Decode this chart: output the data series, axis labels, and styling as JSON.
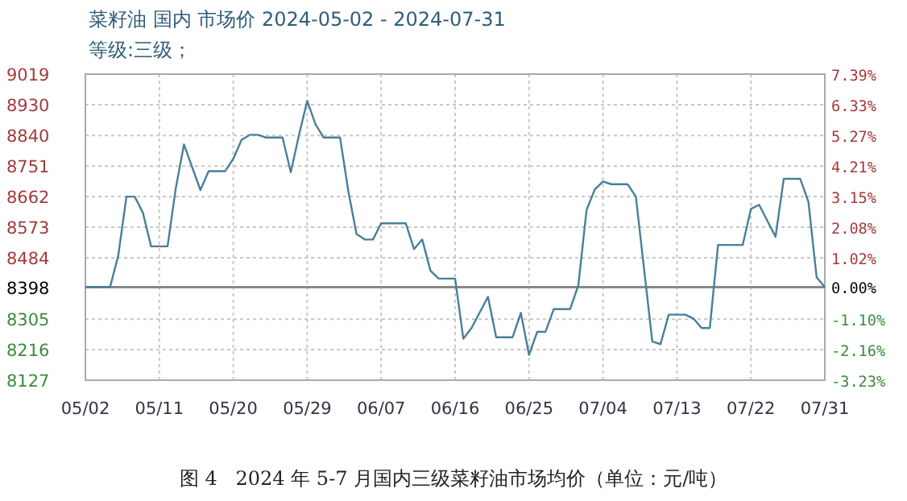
{
  "chart_data": {
    "type": "line",
    "title": "菜籽油 国内 市场价 2024-05-02 - 2024-07-31",
    "subtitle": "等级:三级；",
    "annotations": [
      "图 4   2024 年 5-7 月国内三级菜籽油市场均价（单位：元/吨）"
    ],
    "x": [
      "2024-05-02",
      "2024-05-05",
      "2024-05-06",
      "2024-05-07",
      "2024-05-08",
      "2024-05-09",
      "2024-05-10",
      "2024-05-12",
      "2024-05-13",
      "2024-05-14",
      "2024-05-16",
      "2024-05-17",
      "2024-05-19",
      "2024-05-20",
      "2024-05-21",
      "2024-05-22",
      "2024-05-23",
      "2024-05-24",
      "2024-05-26",
      "2024-05-27",
      "2024-05-28",
      "2024-05-29",
      "2024-05-30",
      "2024-05-31",
      "2024-06-02",
      "2024-06-03",
      "2024-06-04",
      "2024-06-05",
      "2024-06-06",
      "2024-06-07",
      "2024-06-10",
      "2024-06-11",
      "2024-06-12",
      "2024-06-13",
      "2024-06-14",
      "2024-06-16",
      "2024-06-17",
      "2024-06-18",
      "2024-06-20",
      "2024-06-21",
      "2024-06-23",
      "2024-06-24",
      "2024-06-25",
      "2024-06-26",
      "2024-06-27",
      "2024-06-28",
      "2024-06-30",
      "2024-07-01",
      "2024-07-02",
      "2024-07-03",
      "2024-07-04",
      "2024-07-05",
      "2024-07-07",
      "2024-07-08",
      "2024-07-10",
      "2024-07-11",
      "2024-07-12",
      "2024-07-14",
      "2024-07-15",
      "2024-07-16",
      "2024-07-17",
      "2024-07-18",
      "2024-07-21",
      "2024-07-22",
      "2024-07-23",
      "2024-07-25",
      "2024-07-26",
      "2024-07-28",
      "2024-07-29",
      "2024-07-30",
      "2024-07-31"
    ],
    "series": [
      {
        "color": "#4a7f9a",
        "values": [
          8398,
          8398,
          8490,
          8662,
          8662,
          8615,
          8517,
          8517,
          8686,
          8814,
          8681,
          8736,
          8736,
          8772,
          8827,
          8842,
          8842,
          8834,
          8834,
          8733,
          8842,
          8941,
          8873,
          8834,
          8834,
          8678,
          8553,
          8537,
          8537,
          8584,
          8584,
          8509,
          8537,
          8446,
          8423,
          8423,
          8248,
          8279,
          8370,
          8252,
          8252,
          8323,
          8201,
          8268,
          8268,
          8334,
          8334,
          8404,
          8623,
          8683,
          8706,
          8698,
          8698,
          8662,
          8240,
          8232,
          8318,
          8318,
          8307,
          8279,
          8279,
          8521,
          8521,
          8626,
          8638,
          8545,
          8714,
          8714,
          8647,
          8427,
          8398
        ]
      }
    ],
    "xlim": [
      "2024-05-02",
      "2024-07-31"
    ],
    "xticks": [
      {
        "value": "2024-05-02",
        "label": "05/02"
      },
      {
        "value": "2024-05-11",
        "label": "05/11"
      },
      {
        "value": "2024-05-20",
        "label": "05/20"
      },
      {
        "value": "2024-05-29",
        "label": "05/29"
      },
      {
        "value": "2024-06-07",
        "label": "06/07"
      },
      {
        "value": "2024-06-16",
        "label": "06/16"
      },
      {
        "value": "2024-06-25",
        "label": "06/25"
      },
      {
        "value": "2024-07-04",
        "label": "07/04"
      },
      {
        "value": "2024-07-13",
        "label": "07/13"
      },
      {
        "value": "2024-07-22",
        "label": "07/22"
      },
      {
        "value": "2024-07-31",
        "label": "07/31"
      }
    ],
    "ylim": [
      8127,
      9019
    ],
    "yticks": [
      8127,
      8216,
      8305,
      8398,
      8484,
      8573,
      8662,
      8751,
      8840,
      8930,
      9019
    ],
    "y2lim": [
      -3.23,
      7.39
    ],
    "y2ticks": [
      {
        "value": -3.23,
        "label": "-3.23%"
      },
      {
        "value": -2.16,
        "label": "-2.16%"
      },
      {
        "value": -1.1,
        "label": "-1.10%"
      },
      {
        "value": 0,
        "label": "0.00%"
      },
      {
        "value": 1.02,
        "label": "1.02%"
      },
      {
        "value": 2.08,
        "label": "2.08%"
      },
      {
        "value": 3.15,
        "label": "3.15%"
      },
      {
        "value": 4.21,
        "label": "4.21%"
      },
      {
        "value": 5.27,
        "label": "5.27%"
      },
      {
        "value": 6.33,
        "label": "6.33%"
      },
      {
        "value": 7.39,
        "label": "7.39%"
      }
    ],
    "ref_lines": [
      {
        "axis": "y",
        "value": 8398,
        "color": "#888888"
      }
    ],
    "grid": true,
    "marker": "none",
    "line_style": "solid"
  }
}
